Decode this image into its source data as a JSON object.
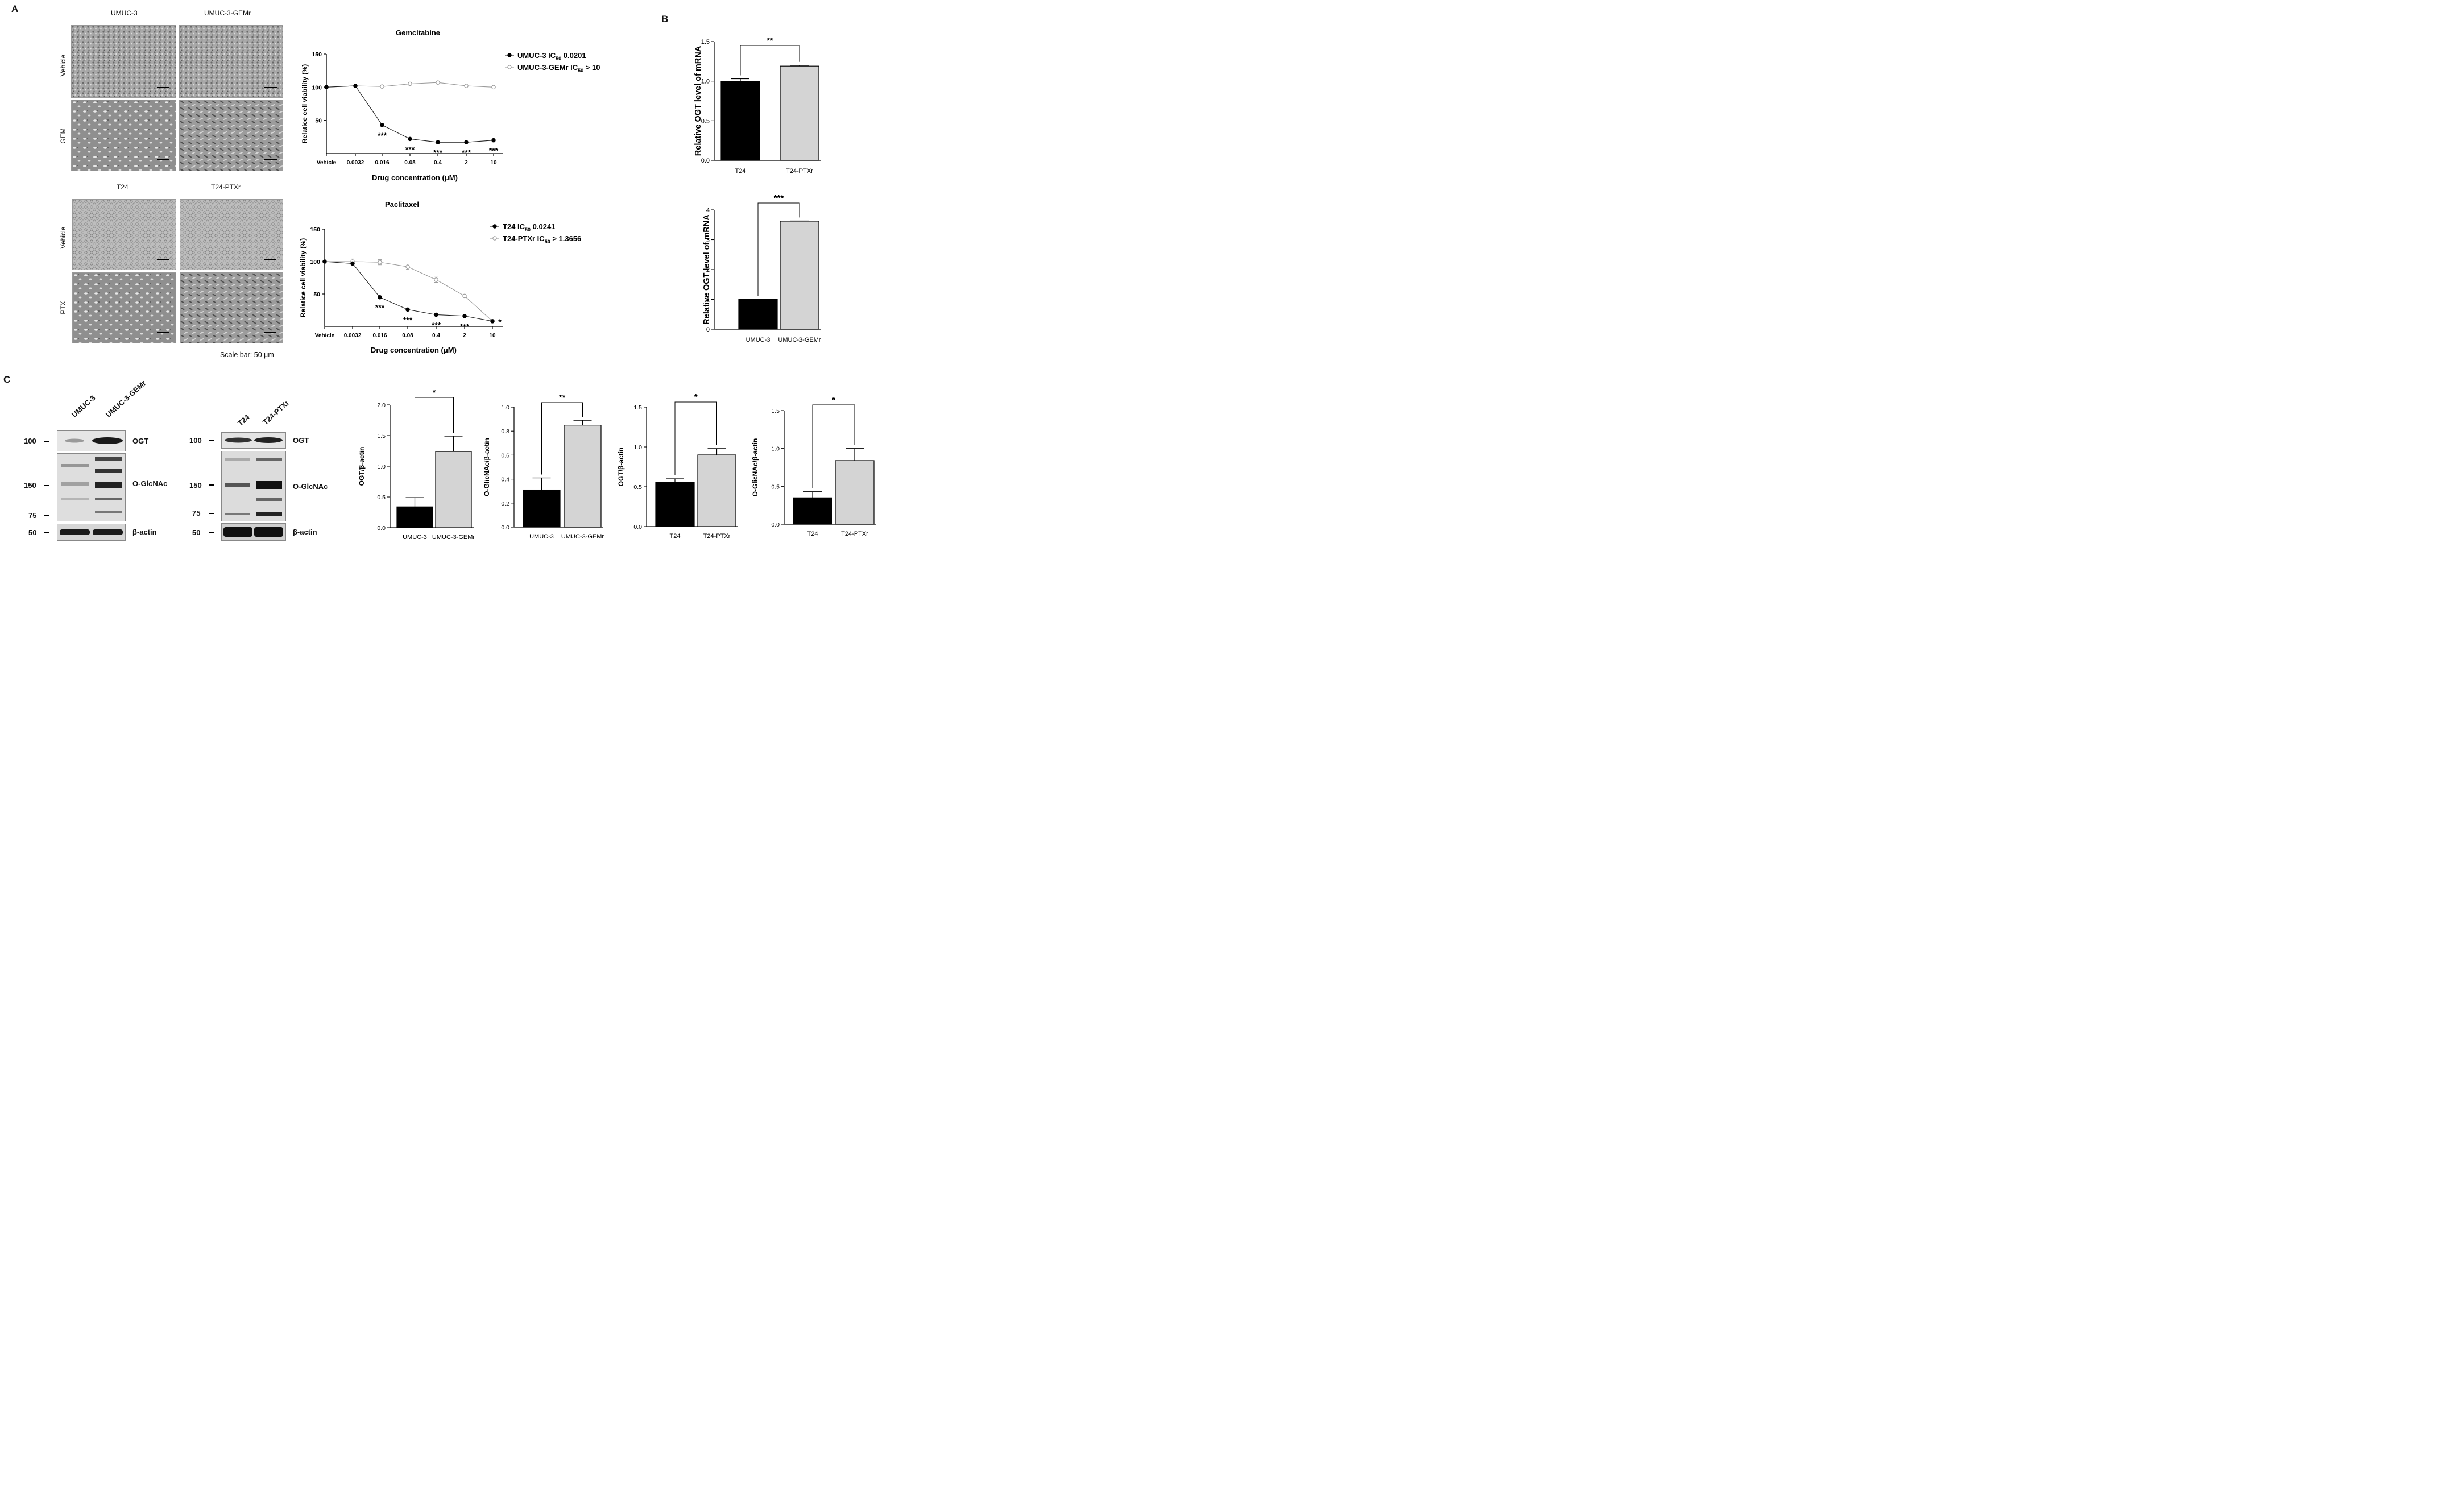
{
  "panels": {
    "a": "A",
    "b": "B",
    "c": "C"
  },
  "panel_a": {
    "top_columns": [
      "UMUC-3",
      "UMUC-3-GEMr"
    ],
    "top_rows": [
      "Vehicle",
      "GEM"
    ],
    "bottom_columns": [
      "T24",
      "T24-PTXr"
    ],
    "bottom_rows": [
      "Vehicle",
      "PTX"
    ],
    "scale_bar_note": "Scale bar: 50 µm"
  },
  "panel_c_blots": {
    "left": {
      "lanes": [
        "UMUC-3",
        "UMUC-3-GEMr"
      ],
      "bands": [
        "OGT",
        "O-GlcNAc",
        "β-actin"
      ],
      "mw": [
        "100",
        "150",
        "75",
        "50"
      ]
    },
    "right": {
      "lanes": [
        "T24",
        "T24-PTXr"
      ],
      "bands": [
        "OGT",
        "O-GlcNAc",
        "β-actin"
      ],
      "mw": [
        "100",
        "150",
        "75",
        "50"
      ]
    }
  },
  "colors": {
    "black_bar": "#000000",
    "grey_bar": "#d4d4d4",
    "filled_line": "#222222",
    "open_line": "#9a9a9a"
  },
  "chart_data": [
    {
      "id": "gem",
      "type": "line",
      "title": "Gemcitabine",
      "xlabel": "Drug concentration (μM)",
      "ylabel": "Relatice cell viability (%)",
      "categories": [
        "Vehicle",
        "0.0032",
        "0.016",
        "0.08",
        "0.4",
        "2",
        "10"
      ],
      "ylim": [
        0,
        150
      ],
      "yticks": [
        50,
        100,
        150
      ],
      "series": [
        {
          "name": "UMUC-3 IC50 0.0201",
          "label_main": "UMUC-3 IC",
          "label_sub": "50",
          "label_tail": " 0.0201",
          "marker": "filled",
          "values": [
            100,
            102,
            43,
            22,
            17,
            17,
            20
          ],
          "errors": [
            0,
            1,
            1,
            1,
            1,
            1,
            1
          ]
        },
        {
          "name": "UMUC-3-GEMr IC50 > 10",
          "label_main": "UMUC-3-GEMr IC",
          "label_sub": "50",
          "label_tail": " > 10",
          "marker": "open",
          "values": [
            100,
            102,
            101,
            105,
            107,
            102,
            100
          ],
          "errors": [
            0,
            1,
            1,
            1,
            1,
            1,
            1
          ]
        }
      ],
      "annotations": [
        {
          "category": "0.016",
          "text": "***"
        },
        {
          "category": "0.08",
          "text": "***"
        },
        {
          "category": "0.4",
          "text": "***"
        },
        {
          "category": "2",
          "text": "***"
        },
        {
          "category": "10",
          "text": "***"
        }
      ]
    },
    {
      "id": "ptx",
      "type": "line",
      "title": "Paclitaxel",
      "xlabel": "Drug concentration (μM)",
      "ylabel": "Relatice cell viability  (%)",
      "categories": [
        "Vehicle",
        "0.0032",
        "0.016",
        "0.08",
        "0.4",
        "2",
        "10"
      ],
      "ylim": [
        0,
        150
      ],
      "yticks": [
        50,
        100,
        150
      ],
      "series": [
        {
          "name": "T24 IC50 0.0241",
          "label_main": "T24 IC",
          "label_sub": "50",
          "label_tail": " 0.0241",
          "marker": "filled",
          "values": [
            100,
            97,
            45,
            26,
            18,
            16,
            8
          ],
          "errors": [
            0,
            1,
            1,
            1,
            1,
            1,
            1
          ]
        },
        {
          "name": "T24-PTXr IC50 > 1.3656",
          "label_main": "T24-PTXr IC",
          "label_sub": "50",
          "label_tail": " > 1.3656",
          "marker": "open",
          "values": [
            100,
            100,
            99,
            92,
            72,
            47,
            8
          ],
          "errors": [
            0,
            4,
            4,
            4,
            4,
            1,
            1
          ]
        }
      ],
      "annotations": [
        {
          "category": "0.016",
          "text": "***"
        },
        {
          "category": "0.08",
          "text": "***"
        },
        {
          "category": "0.4",
          "text": "***"
        },
        {
          "category": "2",
          "text": "***"
        },
        {
          "category": "10",
          "text": "*"
        }
      ]
    },
    {
      "id": "b1",
      "type": "bar",
      "ylabel": "Relative OGT level of mRNA",
      "categories": [
        "T24",
        "T24-PTXr"
      ],
      "values": [
        1.0,
        1.19
      ],
      "errors": [
        0.03,
        0.01
      ],
      "ylim": [
        0,
        1.5
      ],
      "yticks": [
        "0.0",
        "0.5",
        "1.0",
        "1.5"
      ],
      "significance": "**"
    },
    {
      "id": "b2",
      "type": "bar",
      "ylabel": "Relative OGT level of mRNA",
      "categories": [
        "UMUC-3",
        "UMUC-3-GEMr"
      ],
      "values": [
        1.0,
        3.62
      ],
      "errors": [
        0.01,
        0.01
      ],
      "ylim": [
        0,
        4
      ],
      "yticks": [
        "0",
        "1",
        "2",
        "3",
        "4"
      ],
      "significance": "***"
    },
    {
      "id": "c1",
      "type": "bar",
      "ylabel": "OGT/β-actin",
      "categories": [
        "UMUC-3",
        "UMUC-3-GEMr"
      ],
      "values": [
        0.34,
        1.24
      ],
      "errors": [
        0.15,
        0.25
      ],
      "ylim": [
        0,
        2.0
      ],
      "yticks": [
        "0.0",
        "0.5",
        "1.0",
        "1.5",
        "2.0"
      ],
      "significance": "*"
    },
    {
      "id": "c2",
      "type": "bar",
      "ylabel": "O-GlicNAc/β-actin",
      "categories": [
        "UMUC-3",
        "UMUC-3-GEMr"
      ],
      "values": [
        0.31,
        0.85
      ],
      "errors": [
        0.1,
        0.04
      ],
      "ylim": [
        0,
        1.0
      ],
      "yticks": [
        "0.0",
        "0.2",
        "0.4",
        "0.6",
        "0.8",
        "1.0"
      ],
      "significance": "**"
    },
    {
      "id": "c3",
      "type": "bar",
      "ylabel": "OGT/β-actin",
      "categories": [
        "T24",
        "T24-PTXr"
      ],
      "values": [
        0.56,
        0.9
      ],
      "errors": [
        0.04,
        0.08
      ],
      "ylim": [
        0,
        1.5
      ],
      "yticks": [
        "0.0",
        "0.5",
        "1.0",
        "1.5"
      ],
      "significance": "*"
    },
    {
      "id": "c4",
      "type": "bar",
      "ylabel": "O-GlicNAc/β-actin",
      "categories": [
        "T24",
        "T24-PTXr"
      ],
      "values": [
        0.35,
        0.84
      ],
      "errors": [
        0.08,
        0.16
      ],
      "ylim": [
        0,
        1.5
      ],
      "yticks": [
        "0.0",
        "0.5",
        "1.0",
        "1.5"
      ],
      "significance": "*"
    }
  ]
}
